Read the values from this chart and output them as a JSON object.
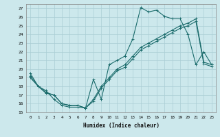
{
  "xlabel": "Humidex (Indice chaleur)",
  "background_color": "#cce8ec",
  "grid_color": "#aacdd4",
  "line_color": "#1a6b6b",
  "xlim": [
    -0.5,
    23.5
  ],
  "ylim": [
    15,
    27.5
  ],
  "yticks": [
    15,
    16,
    17,
    18,
    19,
    20,
    21,
    22,
    23,
    24,
    25,
    26,
    27
  ],
  "xticks": [
    0,
    1,
    2,
    3,
    4,
    5,
    6,
    7,
    8,
    9,
    10,
    11,
    12,
    13,
    14,
    15,
    16,
    17,
    18,
    19,
    20,
    21,
    22,
    23
  ],
  "series1_x": [
    0,
    1,
    2,
    3,
    4,
    5,
    6,
    7,
    8,
    9,
    10,
    11,
    12,
    13,
    14,
    15,
    16,
    17,
    18,
    19,
    20,
    21,
    22,
    23
  ],
  "series1_y": [
    19.5,
    18.0,
    17.5,
    16.5,
    15.8,
    15.6,
    15.6,
    15.5,
    18.8,
    16.5,
    20.5,
    21.0,
    21.5,
    23.5,
    27.1,
    26.6,
    26.8,
    26.1,
    25.8,
    25.8,
    24.0,
    20.5,
    22.0,
    20.5
  ],
  "series2_x": [
    0,
    1,
    2,
    3,
    4,
    5,
    6,
    7,
    8,
    9,
    10,
    11,
    12,
    13,
    14,
    15,
    16,
    17,
    18,
    19,
    20,
    21,
    22,
    23
  ],
  "series2_y": [
    19.0,
    18.0,
    17.2,
    17.0,
    16.0,
    15.8,
    15.8,
    15.5,
    16.5,
    18.0,
    19.0,
    20.0,
    20.5,
    21.5,
    22.5,
    23.0,
    23.5,
    24.0,
    24.5,
    25.0,
    25.3,
    25.8,
    20.8,
    20.5
  ],
  "series3_x": [
    0,
    1,
    2,
    3,
    4,
    5,
    6,
    7,
    8,
    9,
    10,
    11,
    12,
    13,
    14,
    15,
    16,
    17,
    18,
    19,
    20,
    21,
    22,
    23
  ],
  "series3_y": [
    19.2,
    18.0,
    17.3,
    17.0,
    16.0,
    15.8,
    15.8,
    15.5,
    16.3,
    17.8,
    18.8,
    19.8,
    20.2,
    21.2,
    22.2,
    22.7,
    23.2,
    23.7,
    24.2,
    24.7,
    25.0,
    25.5,
    20.6,
    20.3
  ]
}
